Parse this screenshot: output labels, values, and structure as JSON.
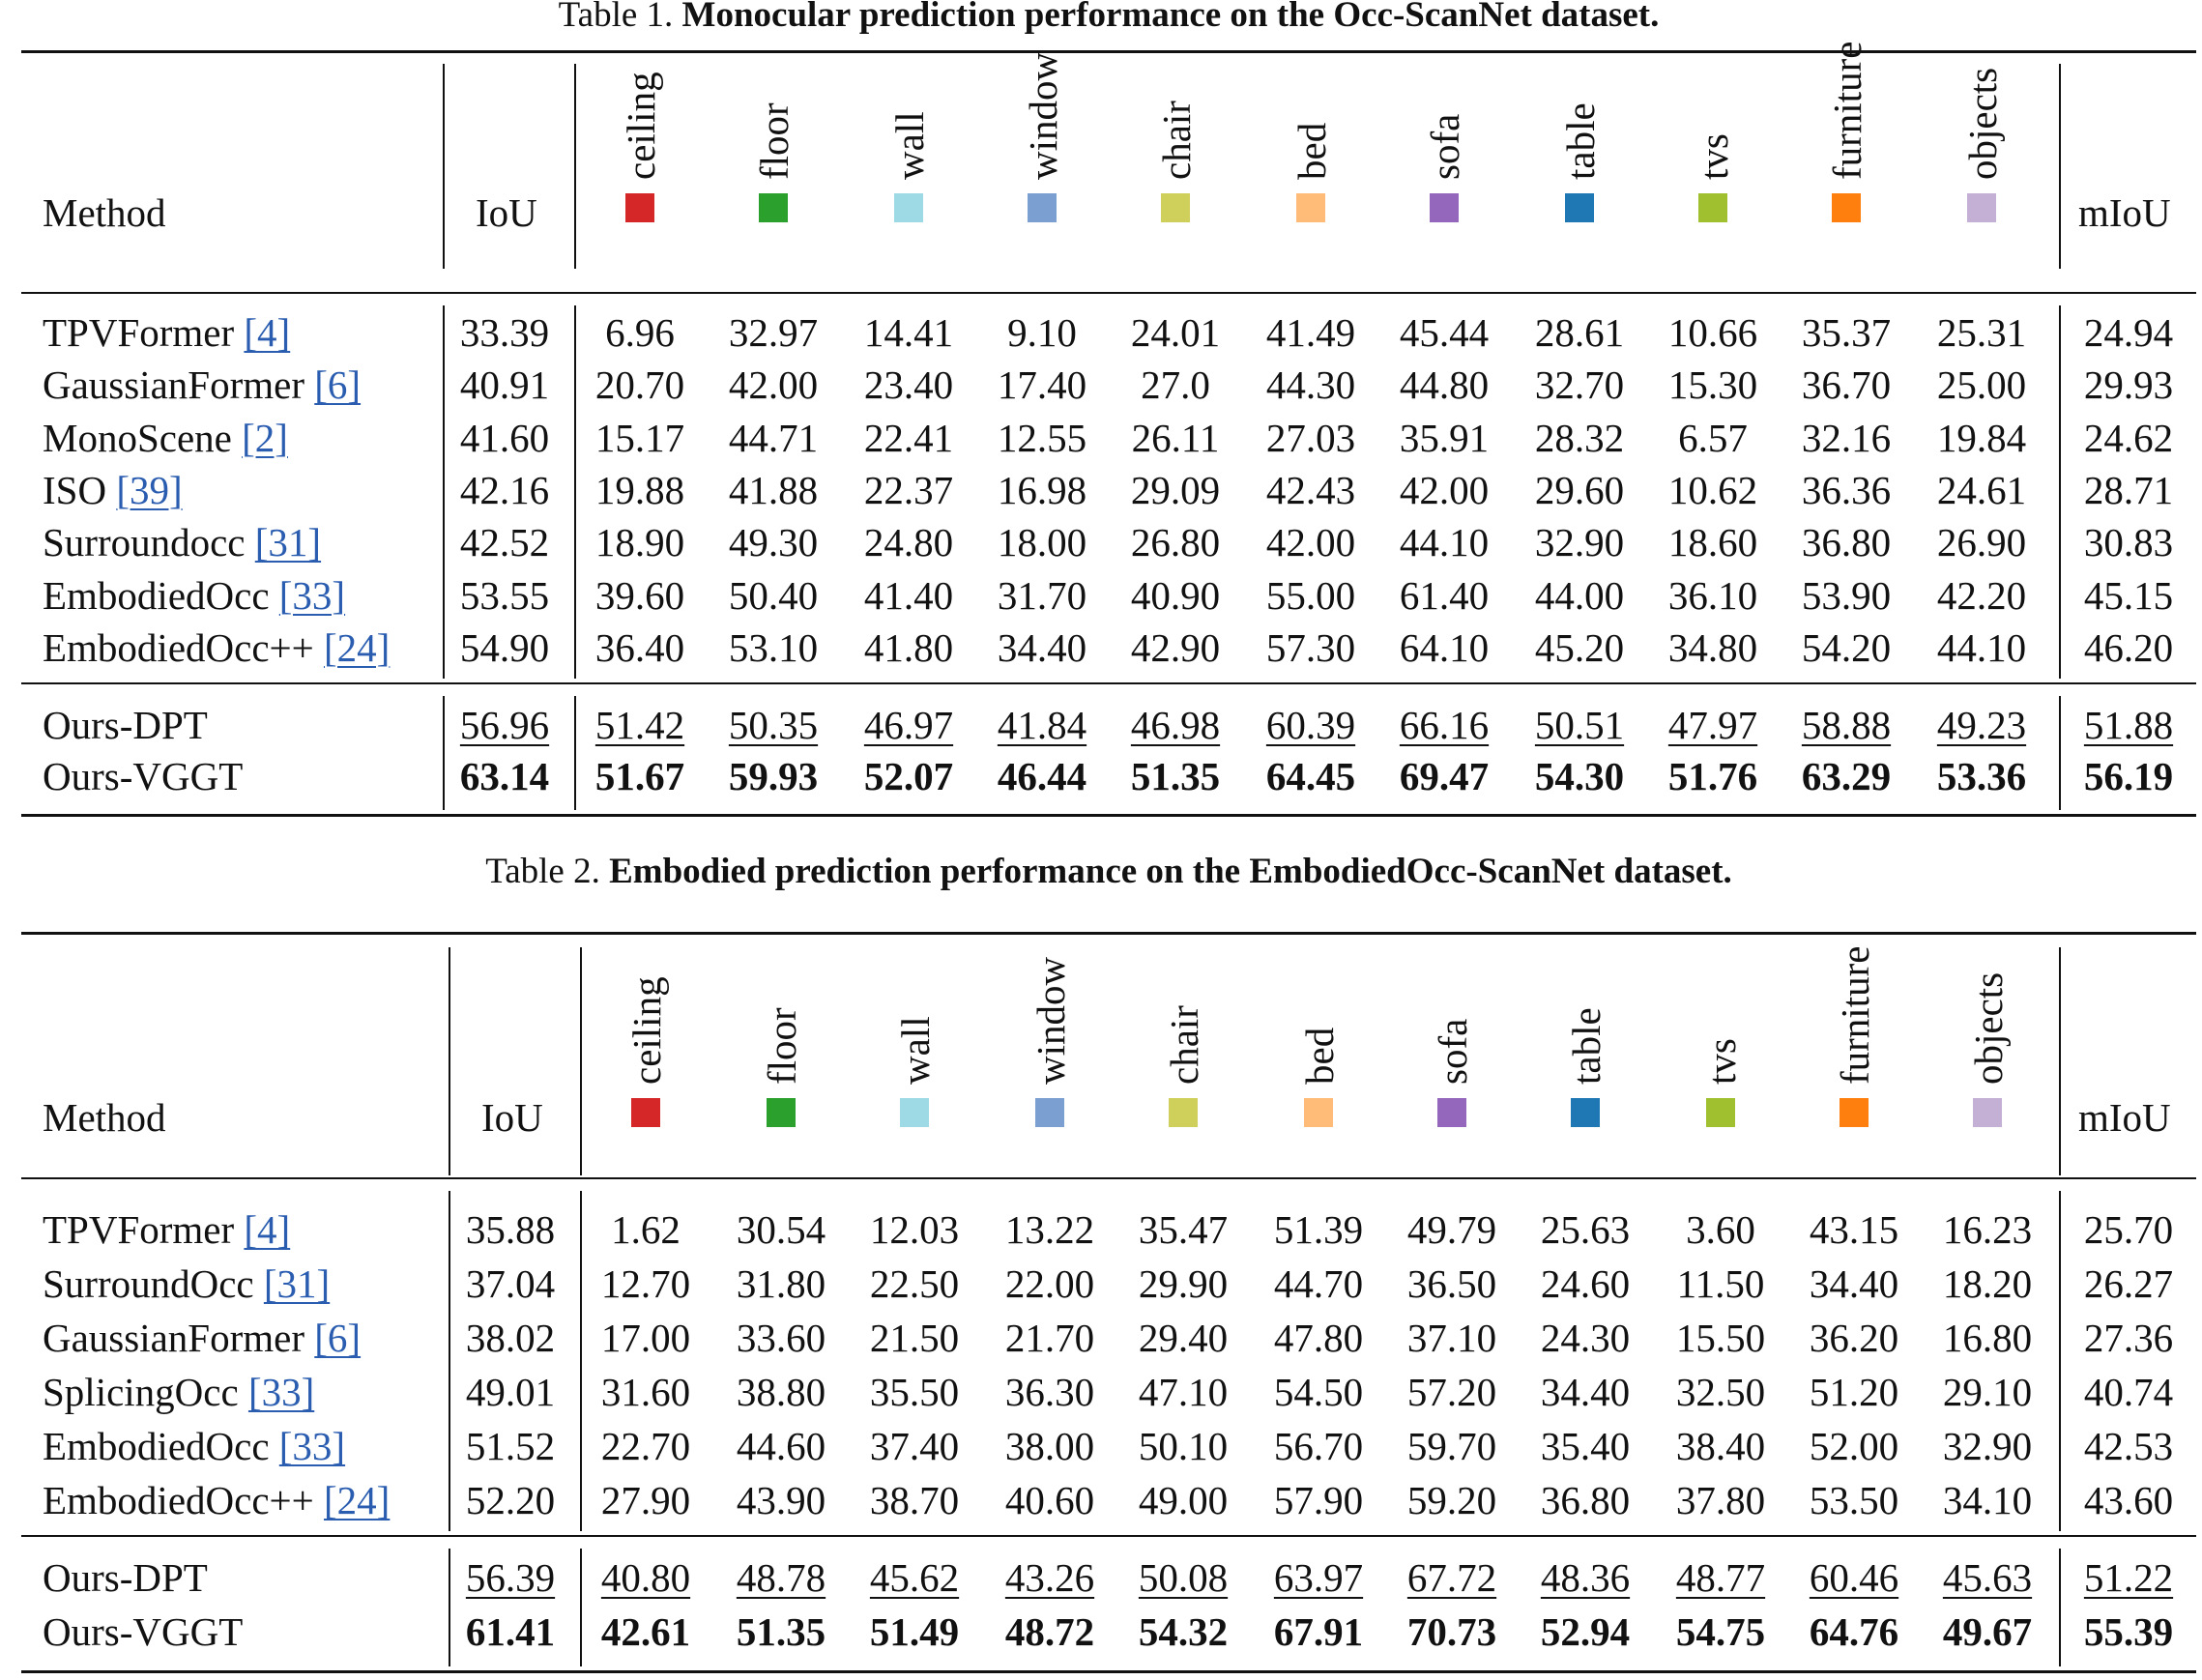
{
  "tables": [
    {
      "caption_prefix": "Table 1.",
      "caption_title": "Monocular prediction performance on the Occ-ScanNet dataset.",
      "method_header": "Method",
      "iou_header": "IoU",
      "miou_header": "mIoU",
      "classes": [
        {
          "name": "ceiling",
          "color": "#d62728"
        },
        {
          "name": "floor",
          "color": "#2ca02c"
        },
        {
          "name": "wall",
          "color": "#9edae5"
        },
        {
          "name": "window",
          "color": "#7b9fd0"
        },
        {
          "name": "chair",
          "color": "#cfcf5c"
        },
        {
          "name": "bed",
          "color": "#ffbb78"
        },
        {
          "name": "sofa",
          "color": "#9467bd"
        },
        {
          "name": "table",
          "color": "#1f77b4"
        },
        {
          "name": "tvs",
          "color": "#a0c030"
        },
        {
          "name": "furniture",
          "color": "#ff7f0e"
        },
        {
          "name": "objects",
          "color": "#c5b0d5"
        }
      ],
      "rows": [
        {
          "method": "TPVFormer",
          "ref": "[4]",
          "iou": "33.39",
          "values": [
            "6.96",
            "32.97",
            "14.41",
            "9.10",
            "24.01",
            "41.49",
            "45.44",
            "28.61",
            "10.66",
            "35.37",
            "25.31"
          ],
          "miou": "24.94"
        },
        {
          "method": "GaussianFormer",
          "ref": "[6]",
          "iou": "40.91",
          "values": [
            "20.70",
            "42.00",
            "23.40",
            "17.40",
            "27.0",
            "44.30",
            "44.80",
            "32.70",
            "15.30",
            "36.70",
            "25.00"
          ],
          "miou": "29.93"
        },
        {
          "method": "MonoScene",
          "ref": "[2]",
          "iou": "41.60",
          "values": [
            "15.17",
            "44.71",
            "22.41",
            "12.55",
            "26.11",
            "27.03",
            "35.91",
            "28.32",
            "6.57",
            "32.16",
            "19.84"
          ],
          "miou": "24.62"
        },
        {
          "method": "ISO",
          "ref": "[39]",
          "iou": "42.16",
          "values": [
            "19.88",
            "41.88",
            "22.37",
            "16.98",
            "29.09",
            "42.43",
            "42.00",
            "29.60",
            "10.62",
            "36.36",
            "24.61"
          ],
          "miou": "28.71"
        },
        {
          "method": "Surroundocc",
          "ref": "[31]",
          "iou": "42.52",
          "values": [
            "18.90",
            "49.30",
            "24.80",
            "18.00",
            "26.80",
            "42.00",
            "44.10",
            "32.90",
            "18.60",
            "36.80",
            "26.90"
          ],
          "miou": "30.83"
        },
        {
          "method": "EmbodiedOcc",
          "ref": "[33]",
          "iou": "53.55",
          "values": [
            "39.60",
            "50.40",
            "41.40",
            "31.70",
            "40.90",
            "55.00",
            "61.40",
            "44.00",
            "36.10",
            "53.90",
            "42.20"
          ],
          "miou": "45.15"
        },
        {
          "method": "EmbodiedOcc++",
          "ref": "[24]",
          "iou": "54.90",
          "values": [
            "36.40",
            "53.10",
            "41.80",
            "34.40",
            "42.90",
            "57.30",
            "64.10",
            "45.20",
            "34.80",
            "54.20",
            "44.10"
          ],
          "miou": "46.20"
        }
      ],
      "ours": [
        {
          "method": "Ours-DPT",
          "style": "underline",
          "iou": "56.96",
          "values": [
            "51.42",
            "50.35",
            "46.97",
            "41.84",
            "46.98",
            "60.39",
            "66.16",
            "50.51",
            "47.97",
            "58.88",
            "49.23"
          ],
          "miou": "51.88"
        },
        {
          "method": "Ours-VGGT",
          "style": "bold",
          "iou": "63.14",
          "values": [
            "51.67",
            "59.93",
            "52.07",
            "46.44",
            "51.35",
            "64.45",
            "69.47",
            "54.30",
            "51.76",
            "63.29",
            "53.36"
          ],
          "miou": "56.19"
        }
      ]
    },
    {
      "caption_prefix": "Table 2.",
      "caption_title": "Embodied prediction performance on the EmbodiedOcc-ScanNet dataset.",
      "method_header": "Method",
      "iou_header": "IoU",
      "miou_header": "mIoU",
      "classes": [
        {
          "name": "ceiling",
          "color": "#d62728"
        },
        {
          "name": "floor",
          "color": "#2ca02c"
        },
        {
          "name": "wall",
          "color": "#9edae5"
        },
        {
          "name": "window",
          "color": "#7b9fd0"
        },
        {
          "name": "chair",
          "color": "#cfcf5c"
        },
        {
          "name": "bed",
          "color": "#ffbb78"
        },
        {
          "name": "sofa",
          "color": "#9467bd"
        },
        {
          "name": "table",
          "color": "#1f77b4"
        },
        {
          "name": "tvs",
          "color": "#a0c030"
        },
        {
          "name": "furniture",
          "color": "#ff7f0e"
        },
        {
          "name": "objects",
          "color": "#c5b0d5"
        }
      ],
      "rows": [
        {
          "method": "TPVFormer",
          "ref": "[4]",
          "iou": "35.88",
          "values": [
            "1.62",
            "30.54",
            "12.03",
            "13.22",
            "35.47",
            "51.39",
            "49.79",
            "25.63",
            "3.60",
            "43.15",
            "16.23"
          ],
          "miou": "25.70"
        },
        {
          "method": "SurroundOcc",
          "ref": "[31]",
          "iou": "37.04",
          "values": [
            "12.70",
            "31.80",
            "22.50",
            "22.00",
            "29.90",
            "44.70",
            "36.50",
            "24.60",
            "11.50",
            "34.40",
            "18.20"
          ],
          "miou": "26.27"
        },
        {
          "method": "GaussianFormer",
          "ref": "[6]",
          "iou": "38.02",
          "values": [
            "17.00",
            "33.60",
            "21.50",
            "21.70",
            "29.40",
            "47.80",
            "37.10",
            "24.30",
            "15.50",
            "36.20",
            "16.80"
          ],
          "miou": "27.36"
        },
        {
          "method": "SplicingOcc",
          "ref": "[33]",
          "iou": "49.01",
          "values": [
            "31.60",
            "38.80",
            "35.50",
            "36.30",
            "47.10",
            "54.50",
            "57.20",
            "34.40",
            "32.50",
            "51.20",
            "29.10"
          ],
          "miou": "40.74"
        },
        {
          "method": "EmbodiedOcc",
          "ref": "[33]",
          "iou": "51.52",
          "values": [
            "22.70",
            "44.60",
            "37.40",
            "38.00",
            "50.10",
            "56.70",
            "59.70",
            "35.40",
            "38.40",
            "52.00",
            "32.90"
          ],
          "miou": "42.53"
        },
        {
          "method": "EmbodiedOcc++",
          "ref": "[24]",
          "iou": "52.20",
          "values": [
            "27.90",
            "43.90",
            "38.70",
            "40.60",
            "49.00",
            "57.90",
            "59.20",
            "36.80",
            "37.80",
            "53.50",
            "34.10"
          ],
          "miou": "43.60"
        }
      ],
      "ours": [
        {
          "method": "Ours-DPT",
          "style": "underline",
          "iou": "56.39",
          "values": [
            "40.80",
            "48.78",
            "45.62",
            "43.26",
            "50.08",
            "63.97",
            "67.72",
            "48.36",
            "48.77",
            "60.46",
            "45.63"
          ],
          "miou": "51.22"
        },
        {
          "method": "Ours-VGGT",
          "style": "bold",
          "iou": "61.41",
          "values": [
            "42.61",
            "51.35",
            "51.49",
            "48.72",
            "54.32",
            "67.91",
            "70.73",
            "52.94",
            "54.75",
            "64.76",
            "49.67"
          ],
          "miou": "55.39"
        }
      ]
    }
  ]
}
